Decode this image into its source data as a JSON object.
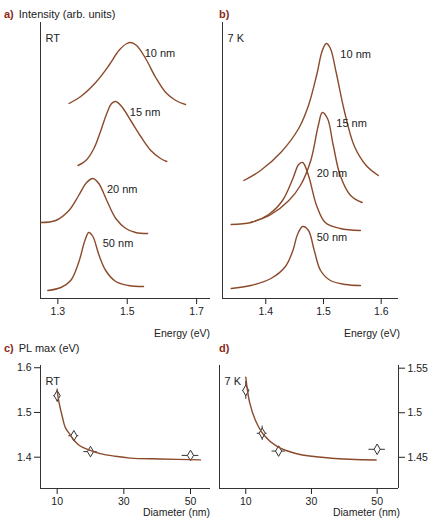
{
  "chart_data": [
    {
      "type": "line",
      "title": "a)",
      "ylabel": "Intensity (arb. units)",
      "annotation": "RT",
      "xlabel": "Energy (eV)",
      "xlim": [
        1.25,
        1.74
      ],
      "xticks": [
        1.3,
        1.5,
        1.7
      ],
      "ylim": [
        0,
        13.8
      ],
      "tick_labels": "x",
      "series": [
        {
          "name": "10 nm",
          "color": "#8b4a2b",
          "x": [
            1.332,
            1.366,
            1.409,
            1.447,
            1.476,
            1.499,
            1.51,
            1.527,
            1.553,
            1.582,
            1.611,
            1.64,
            1.668
          ],
          "values": [
            9.75,
            10.1,
            10.8,
            11.65,
            12.4,
            12.75,
            12.8,
            12.65,
            12.0,
            11.05,
            10.3,
            9.9,
            9.7
          ]
        },
        {
          "name": "15 nm",
          "color": "#8b4a2b",
          "x": [
            1.358,
            1.381,
            1.404,
            1.424,
            1.441,
            1.455,
            1.467,
            1.484,
            1.51,
            1.539,
            1.568,
            1.596,
            1.614
          ],
          "values": [
            6.65,
            6.9,
            7.5,
            8.4,
            9.25,
            9.75,
            9.85,
            9.6,
            8.9,
            8.1,
            7.4,
            7.0,
            6.85
          ]
        },
        {
          "name": "20 nm",
          "color": "#8b4a2b",
          "x": [
            1.251,
            1.294,
            1.332,
            1.36,
            1.383,
            1.401,
            1.418,
            1.441,
            1.467,
            1.496,
            1.524,
            1.559
          ],
          "values": [
            3.8,
            3.9,
            4.4,
            5.15,
            5.8,
            6.0,
            5.75,
            4.9,
            4.0,
            3.5,
            3.3,
            3.25
          ]
        },
        {
          "name": "50 nm",
          "color": "#8b4a2b",
          "x": [
            1.271,
            1.309,
            1.337,
            1.36,
            1.378,
            1.389,
            1.401,
            1.418,
            1.438,
            1.467,
            1.504,
            1.547
          ],
          "values": [
            0.4,
            0.55,
            0.9,
            1.8,
            2.9,
            3.3,
            3.1,
            2.2,
            1.4,
            0.85,
            0.65,
            0.6
          ]
        }
      ]
    },
    {
      "type": "line",
      "title": "b)",
      "annotation": "7 K",
      "xlabel": "Energy (eV)",
      "xlim": [
        1.325,
        1.63
      ],
      "xticks": [
        1.4,
        1.5,
        1.6
      ],
      "ylim": [
        0,
        13.8
      ],
      "tick_labels": "x",
      "series": [
        {
          "name": "10 nm",
          "color": "#8b4a2b",
          "x": [
            1.362,
            1.391,
            1.426,
            1.457,
            1.474,
            1.488,
            1.498,
            1.505,
            1.512,
            1.522,
            1.536,
            1.553,
            1.574,
            1.595
          ],
          "values": [
            5.9,
            6.4,
            7.3,
            8.5,
            9.65,
            11.15,
            12.4,
            12.75,
            12.5,
            11.3,
            9.4,
            7.65,
            6.65,
            6.15
          ]
        },
        {
          "name": "15 nm",
          "color": "#8b4a2b",
          "x": [
            1.374,
            1.409,
            1.44,
            1.46,
            1.478,
            1.491,
            1.498,
            1.507,
            1.517,
            1.529,
            1.547,
            1.567
          ],
          "values": [
            3.8,
            4.2,
            4.9,
            5.65,
            6.9,
            8.65,
            9.3,
            9.0,
            7.65,
            6.15,
            5.15,
            4.8
          ]
        },
        {
          "name": "20 nm",
          "color": "#8b4a2b",
          "x": [
            1.34,
            1.374,
            1.405,
            1.429,
            1.447,
            1.457,
            1.464,
            1.474,
            1.488,
            1.503,
            1.529,
            1.564
          ],
          "values": [
            3.7,
            3.8,
            4.2,
            4.9,
            6.0,
            6.7,
            6.8,
            6.15,
            4.65,
            3.8,
            3.5,
            3.4
          ]
        },
        {
          "name": "50 nm",
          "color": "#8b4a2b",
          "x": [
            1.34,
            1.374,
            1.409,
            1.434,
            1.447,
            1.455,
            1.464,
            1.474,
            1.484,
            1.495,
            1.512,
            1.538,
            1.564
          ],
          "values": [
            0.5,
            0.65,
            1.0,
            1.6,
            2.4,
            3.2,
            3.6,
            3.4,
            2.4,
            1.4,
            0.9,
            0.7,
            0.65
          ]
        }
      ]
    },
    {
      "type": "scatter",
      "title": "c)",
      "ylabel": "PL max (eV)",
      "annotation": "RT",
      "xlabel": "Diameter (nm)",
      "xlim": [
        5,
        56
      ],
      "xticks": [
        10,
        30,
        50
      ],
      "ylim": [
        1.33,
        1.605
      ],
      "yticks": [
        1.4,
        1.5,
        1.6
      ],
      "series": [
        {
          "type": "scatter",
          "marker": "diamond",
          "color": "#8b4a2b",
          "x": [
            10,
            15,
            20,
            50
          ],
          "values": [
            1.5375,
            1.448,
            1.4125,
            1.404
          ],
          "x_error": [
            1,
            1.5,
            2,
            2.5
          ],
          "y_error": [
            0.015,
            0.008,
            0.01,
            0.008
          ]
        },
        {
          "type": "line",
          "color": "#8b4a2b",
          "x": [
            10,
            10.6,
            11.5,
            12.4,
            13.9,
            15.4,
            16.9,
            19.3,
            22.9,
            27.4,
            32,
            41,
            53
          ],
          "values": [
            1.548,
            1.521,
            1.492,
            1.467,
            1.45,
            1.435,
            1.425,
            1.417,
            1.408,
            1.402,
            1.398,
            1.396,
            1.394
          ]
        }
      ]
    },
    {
      "type": "scatter",
      "title": "d)",
      "annotation": "7 K",
      "xlabel": "Diameter (nm)",
      "xlim": [
        2,
        56.5
      ],
      "xticks": [
        10,
        30,
        50
      ],
      "y2lim": [
        1.415,
        1.553
      ],
      "y2ticks": [
        1.45,
        1.5,
        1.55
      ],
      "series": [
        {
          "type": "scatter",
          "axis": "y2",
          "marker": "diamond",
          "color": "#8b4a2b",
          "x": [
            10,
            15,
            20,
            50
          ],
          "values": [
            1.525,
            1.477,
            1.457,
            1.459
          ],
          "x_error": [
            1,
            1.5,
            2,
            2.5
          ],
          "y_error": [
            0.01,
            0.008,
            0.003,
            0.004
          ]
        },
        {
          "type": "line",
          "axis": "y2",
          "color": "#8b4a2b",
          "x": [
            10,
            11.2,
            13,
            15.5,
            19.4,
            25.5,
            36,
            49.7
          ],
          "values": [
            1.54,
            1.511,
            1.491,
            1.475,
            1.4625,
            1.454,
            1.449,
            1.447
          ]
        }
      ]
    }
  ]
}
